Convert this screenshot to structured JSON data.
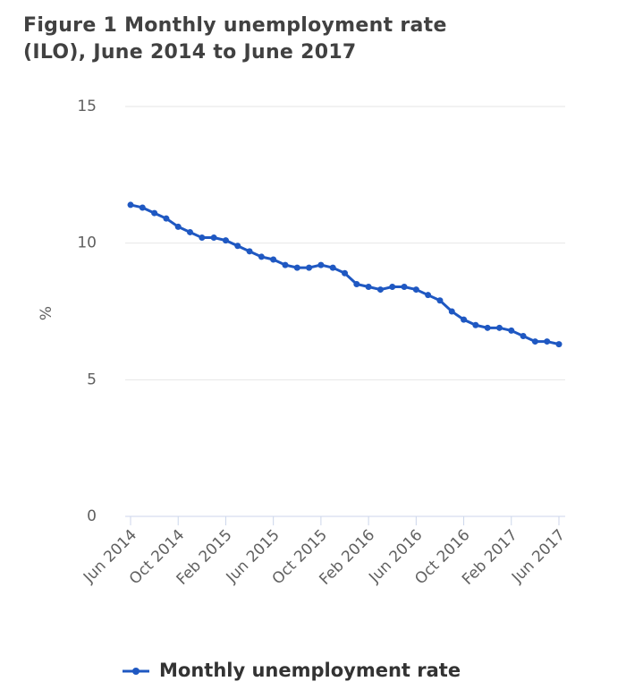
{
  "chart_data": {
    "type": "line",
    "title": "Figure 1 Monthly unemployment rate (ILO), June 2014 to June 2017",
    "y_label": "%",
    "categories": [
      "Jun 2014",
      null,
      null,
      null,
      "Oct 2014",
      null,
      null,
      null,
      "Feb 2015",
      null,
      null,
      null,
      "Jun 2015",
      null,
      null,
      null,
      "Oct 2015",
      null,
      null,
      null,
      "Feb 2016",
      null,
      null,
      null,
      "Jun 2016",
      null,
      null,
      null,
      "Oct 2016",
      null,
      null,
      null,
      "Feb 2017",
      null,
      null,
      null,
      "Jun 2017"
    ],
    "series": [
      {
        "name": "Monthly unemployment rate",
        "color": "#1f58c2",
        "values": [
          11.4,
          11.3,
          11.1,
          10.9,
          10.6,
          10.4,
          10.2,
          10.2,
          10.1,
          9.9,
          9.7,
          9.5,
          9.4,
          9.2,
          9.1,
          9.1,
          9.2,
          9.1,
          8.9,
          8.5,
          8.4,
          8.3,
          8.4,
          8.4,
          8.3,
          8.1,
          7.9,
          7.5,
          7.2,
          7.0,
          6.9,
          6.9,
          6.8,
          6.6,
          6.4,
          6.4,
          6.3
        ]
      }
    ],
    "ylim": [
      0,
      15
    ],
    "yticks": [
      0,
      5,
      10,
      15
    ],
    "grid": true,
    "legend": "bottom"
  }
}
